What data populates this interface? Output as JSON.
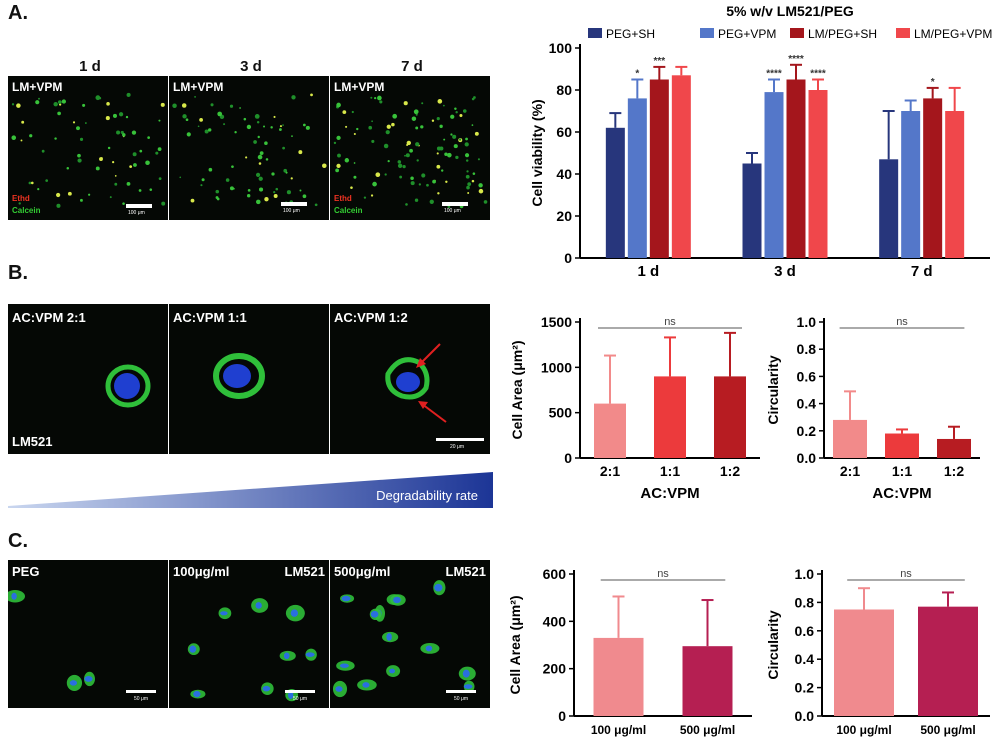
{
  "panels": {
    "a": {
      "letter": "A.",
      "days": [
        "1 d",
        "3 d",
        "7 d"
      ],
      "image_label": "LM+VPM",
      "stain_red": "Ethd",
      "stain_green": "Calcein",
      "scale_text": "100 μm"
    },
    "b": {
      "letter": "B.",
      "ratios": [
        "AC:VPM 2:1",
        "AC:VPM 1:1",
        "AC:VPM 1:2"
      ],
      "substrate": "LM521",
      "gradient_label": "Degradability rate",
      "scale_text": "20 μm"
    },
    "c": {
      "letter": "C.",
      "labels": [
        "PEG",
        "100μg/ml",
        "500μg/ml"
      ],
      "substrate": "LM521",
      "scale_text": "50 μm"
    }
  },
  "colors": {
    "peg_sh": "#27367c",
    "peg_vpm": "#5477c9",
    "lm_peg_sh": "#a4161c",
    "lm_peg_vpm": "#f0474b",
    "b_21": "#f28a8a",
    "b_11": "#ec3a3c",
    "b_12": "#b71c22",
    "c_100": "#f08a8e",
    "c_500": "#b51f52"
  },
  "chart_data": [
    {
      "id": "viability",
      "type": "bar",
      "title": "5% w/v LM521/PEG",
      "ylabel": "Cell viability (%)",
      "xlabel": "",
      "ylim": [
        0,
        100
      ],
      "yticks": [
        0,
        20,
        40,
        60,
        80,
        100
      ],
      "categories": [
        "1 d",
        "3 d",
        "7 d"
      ],
      "series": [
        {
          "name": "PEG+SH",
          "values": [
            62,
            45,
            47
          ],
          "errors": [
            7,
            5,
            23
          ],
          "sig": [
            "",
            "",
            ""
          ]
        },
        {
          "name": "PEG+VPM",
          "values": [
            76,
            79,
            70
          ],
          "errors": [
            9,
            6,
            5
          ],
          "sig": [
            "*",
            "****",
            ""
          ]
        },
        {
          "name": "LM/PEG+SH",
          "values": [
            85,
            85,
            76
          ],
          "errors": [
            6,
            7,
            5
          ],
          "sig": [
            "***",
            "****",
            "*"
          ]
        },
        {
          "name": "LM/PEG+VPM",
          "values": [
            87,
            80,
            70
          ],
          "errors": [
            4,
            5,
            11
          ],
          "sig": [
            "",
            "****",
            ""
          ]
        }
      ],
      "legend": "top",
      "grid": false
    },
    {
      "id": "b-area",
      "type": "bar",
      "ylabel": "Cell Area (μm²)",
      "xlabel": "AC:VPM",
      "ylim": [
        0,
        1500
      ],
      "yticks": [
        0,
        500,
        1000,
        1500
      ],
      "categories": [
        "2:1",
        "1:1",
        "1:2"
      ],
      "values": [
        600,
        900,
        900
      ],
      "errors": [
        530,
        430,
        480
      ],
      "significance": "ns"
    },
    {
      "id": "b-circ",
      "type": "bar",
      "ylabel": "Circularity",
      "xlabel": "AC:VPM",
      "ylim": [
        0,
        1.0
      ],
      "yticks": [
        0.0,
        0.2,
        0.4,
        0.6,
        0.8,
        1.0
      ],
      "categories": [
        "2:1",
        "1:1",
        "1:2"
      ],
      "values": [
        0.28,
        0.18,
        0.14
      ],
      "errors": [
        0.21,
        0.03,
        0.09
      ],
      "significance": "ns"
    },
    {
      "id": "c-area",
      "type": "bar",
      "ylabel": "Cell Area (μm²)",
      "xlabel": "",
      "ylim": [
        0,
        600
      ],
      "yticks": [
        0,
        200,
        400,
        600
      ],
      "categories": [
        "100 μg/ml",
        "500 μg/ml"
      ],
      "values": [
        330,
        295
      ],
      "errors": [
        175,
        195
      ],
      "significance": "ns"
    },
    {
      "id": "c-circ",
      "type": "bar",
      "ylabel": "Circularity",
      "xlabel": "",
      "ylim": [
        0,
        1.0
      ],
      "yticks": [
        0.0,
        0.2,
        0.4,
        0.6,
        0.8,
        1.0
      ],
      "categories": [
        "100 μg/ml",
        "500 μg/ml"
      ],
      "values": [
        0.75,
        0.77
      ],
      "errors": [
        0.15,
        0.1
      ],
      "significance": "ns"
    }
  ]
}
